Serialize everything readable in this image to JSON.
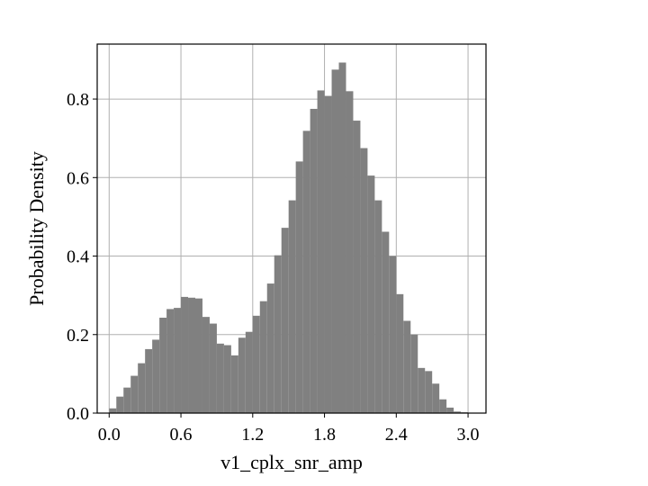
{
  "chart_data": {
    "type": "bar",
    "title": "",
    "xlabel": "v1_cplx_snr_amp",
    "ylabel": "Probability Density",
    "xlim": [
      -0.1,
      3.15
    ],
    "ylim": [
      0.0,
      0.94
    ],
    "xticks": [
      "0.0",
      "0.6",
      "1.2",
      "1.8",
      "2.4",
      "3.0"
    ],
    "yticks": [
      "0.0",
      "0.2",
      "0.4",
      "0.6",
      "0.8"
    ],
    "grid": true,
    "bar_color": "#808080",
    "bin_width": 0.06,
    "x_start": 0.0,
    "values": [
      0.012,
      0.042,
      0.065,
      0.095,
      0.127,
      0.163,
      0.187,
      0.243,
      0.265,
      0.268,
      0.296,
      0.294,
      0.292,
      0.245,
      0.228,
      0.177,
      0.173,
      0.147,
      0.192,
      0.207,
      0.248,
      0.285,
      0.33,
      0.402,
      0.472,
      0.542,
      0.641,
      0.719,
      0.775,
      0.822,
      0.808,
      0.875,
      0.893,
      0.82,
      0.745,
      0.675,
      0.605,
      0.542,
      0.462,
      0.4,
      0.303,
      0.235,
      0.2,
      0.115,
      0.107,
      0.075,
      0.035,
      0.014,
      0.004,
      0.002
    ]
  }
}
